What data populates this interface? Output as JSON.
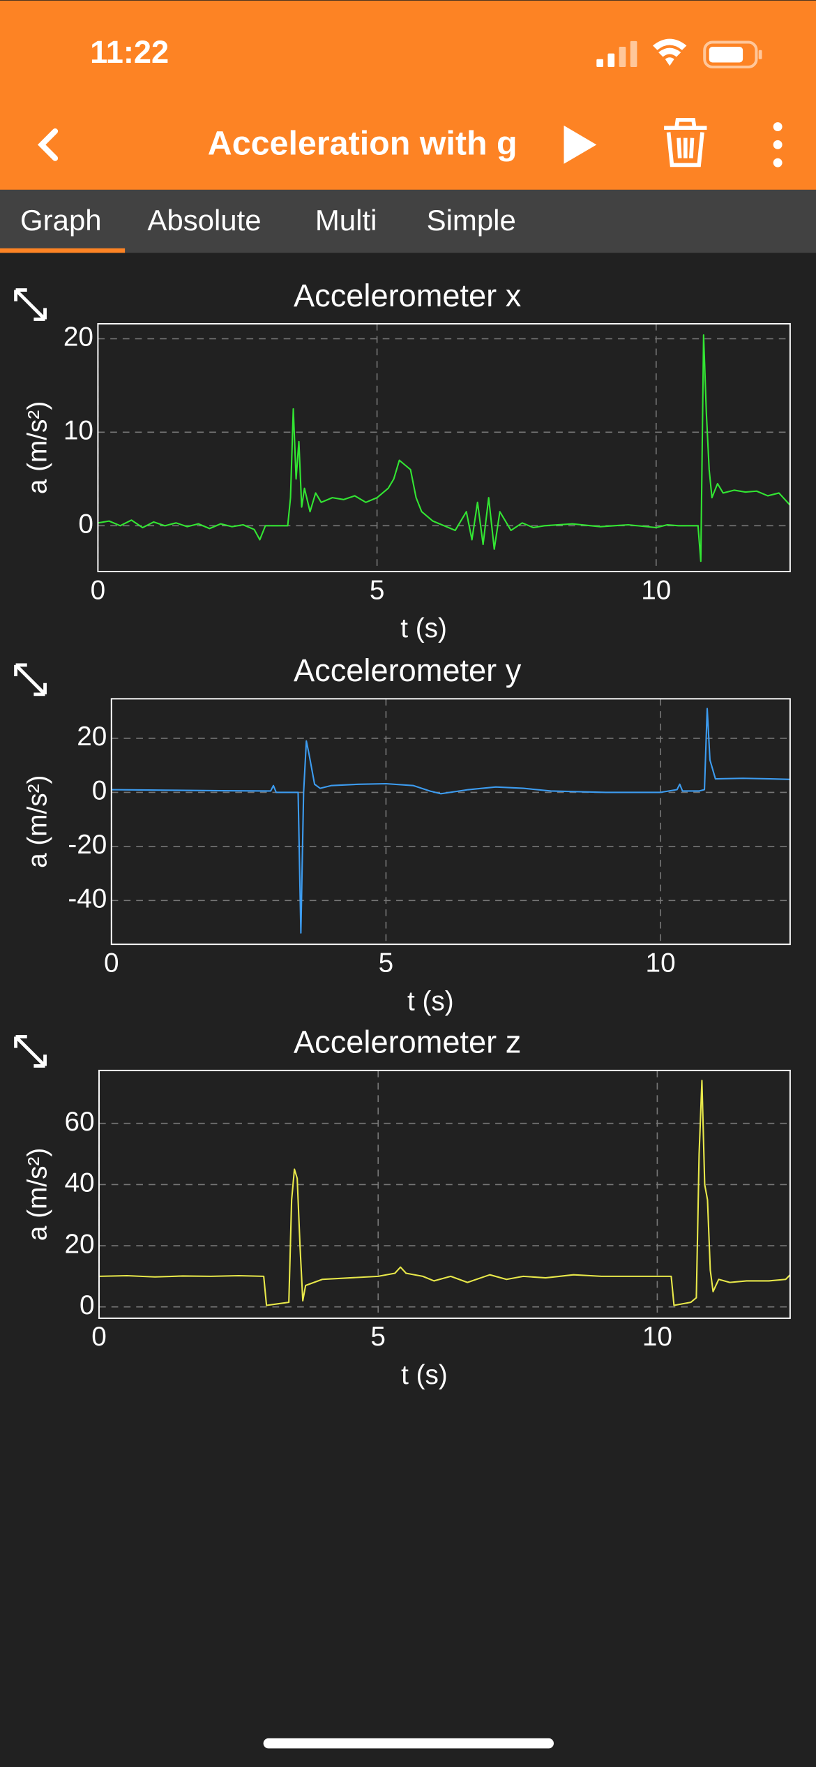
{
  "status_bar": {
    "time": "11:22"
  },
  "header": {
    "title": "Acceleration with g"
  },
  "tabs": [
    "Graph",
    "Absolute",
    "Multi",
    "Simple"
  ],
  "chart_data": [
    {
      "type": "line",
      "title": "Accelerometer x",
      "x_label": "t (s)",
      "y_label": "a (m/s²)",
      "color": "#33e533",
      "grid": true,
      "xlim": [
        0,
        12.4
      ],
      "xticks": [
        0,
        5,
        10
      ],
      "ylim": [
        -4.9,
        21.6
      ],
      "yticks": [
        0,
        10,
        20
      ],
      "x": [
        0,
        0.2,
        0.4,
        0.6,
        0.8,
        1.0,
        1.2,
        1.4,
        1.6,
        1.8,
        2.0,
        2.2,
        2.4,
        2.6,
        2.8,
        2.9,
        3.0,
        3.2,
        3.4,
        3.45,
        3.5,
        3.55,
        3.6,
        3.65,
        3.7,
        3.8,
        3.9,
        4.0,
        4.2,
        4.4,
        4.6,
        4.8,
        5.0,
        5.2,
        5.3,
        5.4,
        5.5,
        5.6,
        5.7,
        5.8,
        6.0,
        6.2,
        6.4,
        6.6,
        6.7,
        6.8,
        6.9,
        7.0,
        7.1,
        7.2,
        7.4,
        7.6,
        7.8,
        8.0,
        8.5,
        9.0,
        9.5,
        10.0,
        10.2,
        10.4,
        10.6,
        10.75,
        10.8,
        10.85,
        10.9,
        10.95,
        11.0,
        11.1,
        11.2,
        11.4,
        11.6,
        11.8,
        12.0,
        12.2,
        12.4
      ],
      "values": [
        0.3,
        0.5,
        0,
        0.6,
        -0.2,
        0.4,
        0,
        0.3,
        -0.1,
        0.2,
        -0.3,
        0.2,
        -0.1,
        0.1,
        -0.4,
        -1.5,
        0,
        0,
        0,
        3,
        12.5,
        5,
        9,
        2,
        4,
        1.5,
        3.5,
        2.5,
        3,
        2.8,
        3.2,
        2.5,
        3,
        4,
        5,
        7,
        6.5,
        6,
        3,
        1.5,
        0.5,
        0,
        -0.5,
        1.5,
        -1.5,
        2.5,
        -2,
        3,
        -2.5,
        1.5,
        -0.5,
        0.3,
        -0.2,
        0,
        0.2,
        -0.1,
        0.1,
        -0.2,
        0.1,
        0,
        0,
        0,
        -3.8,
        20.4,
        12,
        6,
        3,
        4.5,
        3.5,
        3.8,
        3.6,
        3.7,
        3.2,
        3.5,
        2.2
      ]
    },
    {
      "type": "line",
      "title": "Accelerometer y",
      "x_label": "t (s)",
      "y_label": "a (m/s²)",
      "color": "#3d9cf0",
      "grid": true,
      "xlim": [
        0,
        12.36
      ],
      "xticks": [
        0,
        5,
        10
      ],
      "ylim": [
        -56.2,
        34.6
      ],
      "yticks": [
        -40,
        -20,
        0,
        20
      ],
      "x": [
        0,
        1,
        2,
        2.9,
        2.95,
        3.0,
        3.4,
        3.45,
        3.5,
        3.55,
        3.6,
        3.7,
        3.8,
        4.0,
        4.5,
        5.0,
        5.5,
        5.8,
        6.0,
        6.5,
        7.0,
        7.5,
        8.0,
        9.0,
        10.0,
        10.3,
        10.35,
        10.4,
        10.7,
        10.8,
        10.85,
        10.9,
        11.0,
        11.5,
        12.0,
        12.36
      ],
      "values": [
        1,
        0.8,
        0.6,
        0.5,
        2.5,
        0,
        0,
        -52,
        0,
        19,
        14,
        3,
        1.5,
        2.5,
        3,
        3.2,
        2.5,
        0.5,
        -0.5,
        1,
        2,
        1.5,
        0.5,
        0,
        0,
        1,
        3,
        0.5,
        0.5,
        1,
        31,
        12,
        5,
        5.2,
        5,
        4.8
      ]
    },
    {
      "type": "line",
      "title": "Accelerometer z",
      "x_label": "t (s)",
      "y_label": "a (m/s²)",
      "color": "#e8e84a",
      "grid": true,
      "xlim": [
        0,
        12.38
      ],
      "xticks": [
        0,
        5,
        10
      ],
      "ylim": [
        -3.7,
        77.3
      ],
      "yticks": [
        0,
        20,
        40,
        60
      ],
      "x": [
        0,
        0.5,
        1,
        1.5,
        2,
        2.5,
        2.95,
        3.0,
        3.2,
        3.4,
        3.45,
        3.5,
        3.55,
        3.6,
        3.65,
        3.7,
        4.0,
        4.5,
        5.0,
        5.3,
        5.4,
        5.5,
        5.8,
        6.0,
        6.3,
        6.6,
        7.0,
        7.3,
        7.6,
        8.0,
        8.5,
        9.0,
        9.5,
        10.0,
        10.25,
        10.3,
        10.6,
        10.7,
        10.75,
        10.8,
        10.85,
        10.9,
        10.95,
        11.0,
        11.1,
        11.3,
        11.6,
        12.0,
        12.3,
        12.38
      ],
      "values": [
        10,
        10.2,
        9.8,
        10.1,
        10,
        10.2,
        10,
        0.5,
        1,
        1.5,
        35,
        45,
        42,
        20,
        2,
        7,
        9,
        9.5,
        10,
        11,
        13,
        11,
        10,
        8.5,
        10,
        8,
        10.5,
        9,
        10,
        9.5,
        10.5,
        10,
        10,
        10,
        10,
        0.5,
        1.5,
        3,
        50,
        74,
        40,
        35,
        12,
        5,
        9,
        8,
        8.5,
        8.5,
        9,
        10.5
      ]
    }
  ]
}
